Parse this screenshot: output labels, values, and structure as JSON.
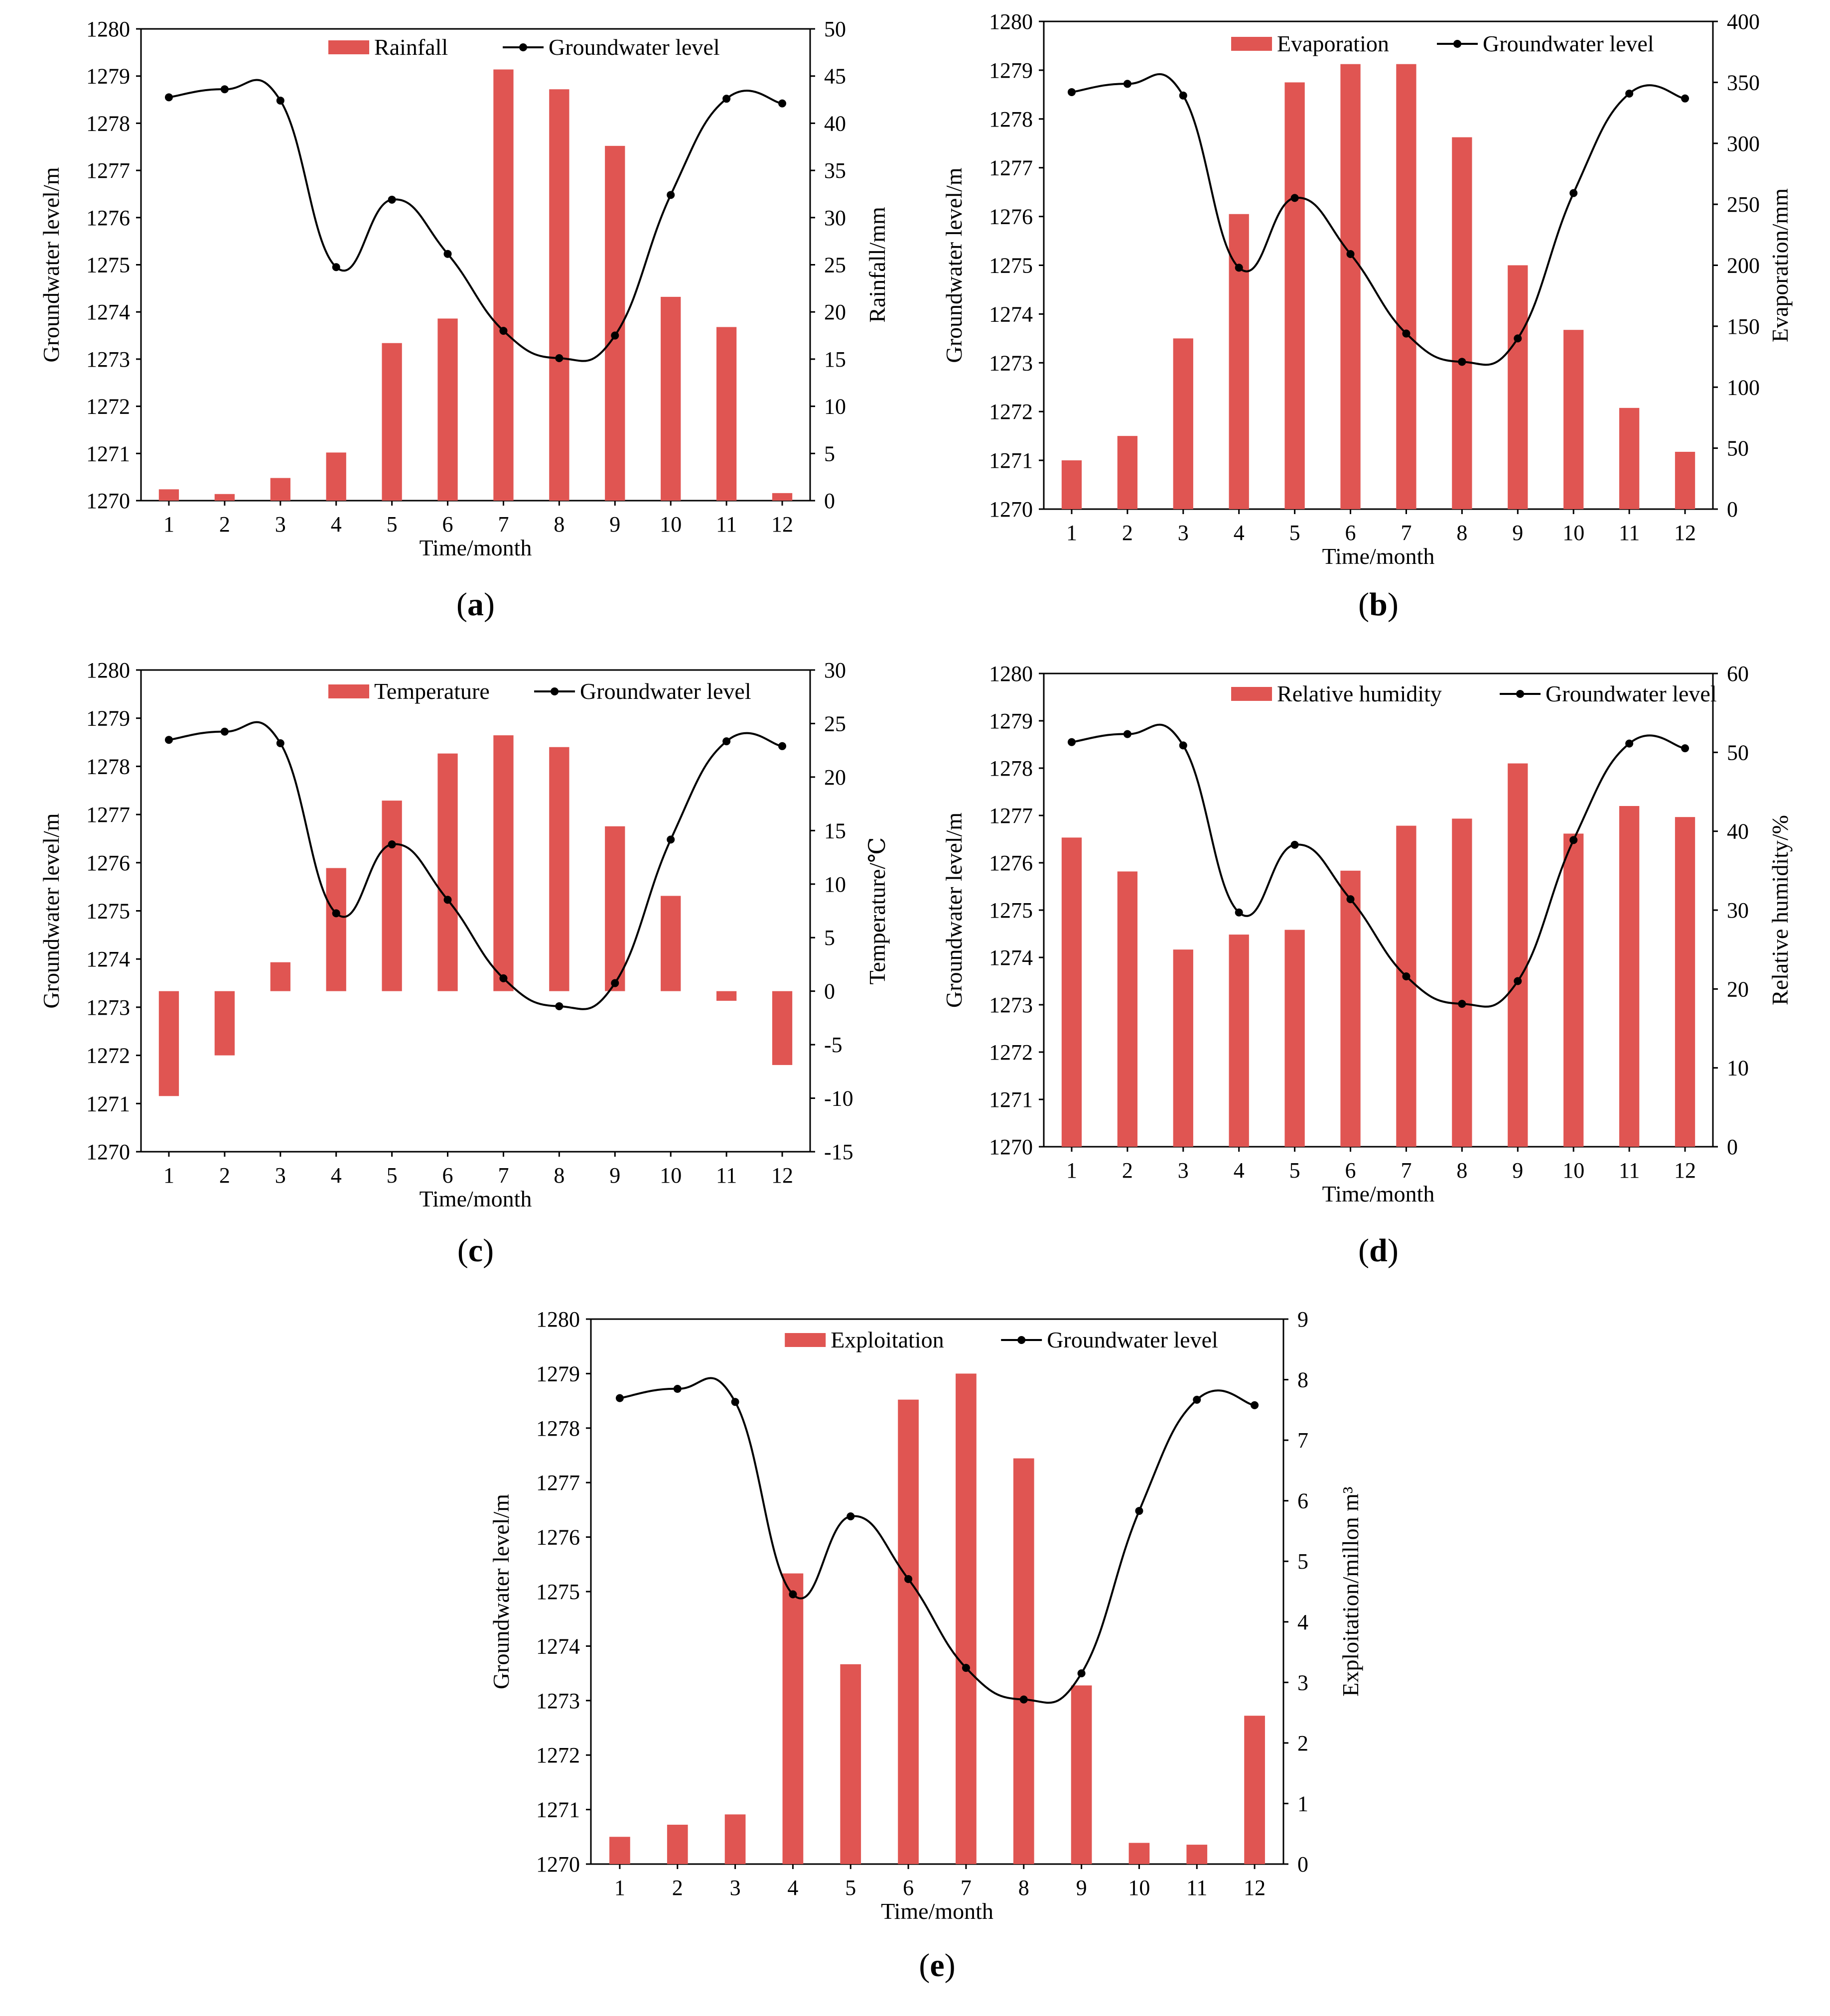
{
  "figure": {
    "colors": {
      "bar": "#E05552",
      "line": "#000000"
    }
  },
  "chart_data": [
    {
      "type": "bar",
      "panel_label": "a",
      "categories": [
        "1",
        "2",
        "3",
        "4",
        "5",
        "6",
        "7",
        "8",
        "9",
        "10",
        "11",
        "12"
      ],
      "xlabel": "Time/month",
      "ylabel_left": "Groundwater level/m",
      "ylabel_right": "Rainfall/mm",
      "ylim_left": [
        1270,
        1280
      ],
      "ylim_right": [
        0,
        50
      ],
      "yticks_left": [
        1270,
        1271,
        1272,
        1273,
        1274,
        1275,
        1276,
        1277,
        1278,
        1279,
        1280
      ],
      "yticks_right": [
        0,
        5,
        10,
        15,
        20,
        25,
        30,
        35,
        40,
        45,
        50
      ],
      "legend": [
        "Rainfall",
        "Groundwater level"
      ],
      "legend_position": "top",
      "series": [
        {
          "name": "Rainfall",
          "type": "bar",
          "axis": "right",
          "values": [
            1.2,
            0.7,
            2.4,
            5.1,
            16.7,
            19.3,
            45.7,
            43.6,
            37.6,
            21.6,
            18.4,
            0.8
          ]
        },
        {
          "name": "Groundwater level",
          "type": "line",
          "axis": "left",
          "values": [
            1278.55,
            1278.72,
            1278.48,
            1274.95,
            1276.38,
            1275.23,
            1273.6,
            1273.02,
            1273.5,
            1276.48,
            1278.52,
            1278.42
          ]
        }
      ]
    },
    {
      "type": "bar",
      "panel_label": "b",
      "categories": [
        "1",
        "2",
        "3",
        "4",
        "5",
        "6",
        "7",
        "8",
        "9",
        "10",
        "11",
        "12"
      ],
      "xlabel": "Time/month",
      "ylabel_left": "Groundwater level/m",
      "ylabel_right": "Evaporation/mm",
      "ylim_left": [
        1270,
        1280
      ],
      "ylim_right": [
        0,
        400
      ],
      "yticks_left": [
        1270,
        1271,
        1272,
        1273,
        1274,
        1275,
        1276,
        1277,
        1278,
        1279,
        1280
      ],
      "yticks_right": [
        0,
        50,
        100,
        150,
        200,
        250,
        300,
        350,
        400
      ],
      "legend": [
        "Evaporation",
        "Groundwater level"
      ],
      "legend_position": "top",
      "series": [
        {
          "name": "Evaporation",
          "type": "bar",
          "axis": "right",
          "values": [
            40,
            60,
            140,
            242,
            350,
            365,
            365,
            305,
            200,
            147,
            83,
            47
          ]
        },
        {
          "name": "Groundwater level",
          "type": "line",
          "axis": "left",
          "values": [
            1278.55,
            1278.72,
            1278.48,
            1274.95,
            1276.38,
            1275.23,
            1273.6,
            1273.02,
            1273.5,
            1276.48,
            1278.52,
            1278.42
          ]
        }
      ]
    },
    {
      "type": "bar",
      "panel_label": "c",
      "categories": [
        "1",
        "2",
        "3",
        "4",
        "5",
        "6",
        "7",
        "8",
        "9",
        "10",
        "11",
        "12"
      ],
      "xlabel": "Time/month",
      "ylabel_left": "Groundwater level/m",
      "ylabel_right": "Temperature/℃",
      "ylim_left": [
        1270,
        1280
      ],
      "ylim_right": [
        -15,
        30
      ],
      "yticks_left": [
        1270,
        1271,
        1272,
        1273,
        1274,
        1275,
        1276,
        1277,
        1278,
        1279,
        1280
      ],
      "yticks_right": [
        -15,
        -10,
        -5,
        0,
        5,
        10,
        15,
        20,
        25,
        30
      ],
      "legend": [
        "Temperature",
        "Groundwater level"
      ],
      "legend_position": "top",
      "series": [
        {
          "name": "Temperature",
          "type": "bar",
          "axis": "right",
          "values": [
            -9.8,
            -6.0,
            2.7,
            11.5,
            17.8,
            22.2,
            23.9,
            22.8,
            15.4,
            8.9,
            -0.9,
            -6.9
          ]
        },
        {
          "name": "Groundwater level",
          "type": "line",
          "axis": "left",
          "values": [
            1278.55,
            1278.72,
            1278.48,
            1274.95,
            1276.38,
            1275.23,
            1273.6,
            1273.02,
            1273.5,
            1276.48,
            1278.52,
            1278.42
          ]
        }
      ]
    },
    {
      "type": "bar",
      "panel_label": "d",
      "categories": [
        "1",
        "2",
        "3",
        "4",
        "5",
        "6",
        "7",
        "8",
        "9",
        "10",
        "11",
        "12"
      ],
      "xlabel": "Time/month",
      "ylabel_left": "Groundwater level/m",
      "ylabel_right": "Relative humidity/%",
      "ylim_left": [
        1270,
        1280
      ],
      "ylim_right": [
        0,
        60
      ],
      "yticks_left": [
        1270,
        1271,
        1272,
        1273,
        1274,
        1275,
        1276,
        1277,
        1278,
        1279,
        1280
      ],
      "yticks_right": [
        0,
        10,
        20,
        30,
        40,
        50,
        60
      ],
      "legend": [
        "Relative humidity",
        "Groundwater level"
      ],
      "legend_position": "top",
      "series": [
        {
          "name": "Relative humidity",
          "type": "bar",
          "axis": "right",
          "values": [
            39.2,
            34.9,
            25.0,
            26.9,
            27.5,
            35.0,
            40.7,
            41.6,
            48.6,
            39.7,
            43.2,
            41.8
          ]
        },
        {
          "name": "Groundwater level",
          "type": "line",
          "axis": "left",
          "values": [
            1278.55,
            1278.72,
            1278.48,
            1274.95,
            1276.38,
            1275.23,
            1273.6,
            1273.02,
            1273.5,
            1276.48,
            1278.52,
            1278.42
          ]
        }
      ]
    },
    {
      "type": "bar",
      "panel_label": "e",
      "categories": [
        "1",
        "2",
        "3",
        "4",
        "5",
        "6",
        "7",
        "8",
        "9",
        "10",
        "11",
        "12"
      ],
      "xlabel": "Time/month",
      "ylabel_left": "Groundwater level/m",
      "ylabel_right": "Exploitation/millon m³",
      "ylim_left": [
        1270,
        1280
      ],
      "ylim_right": [
        0,
        9
      ],
      "yticks_left": [
        1270,
        1271,
        1272,
        1273,
        1274,
        1275,
        1276,
        1277,
        1278,
        1279,
        1280
      ],
      "yticks_right": [
        0,
        1,
        2,
        3,
        4,
        5,
        6,
        7,
        8,
        9
      ],
      "legend": [
        "Exploitation",
        "Groundwater level"
      ],
      "legend_position": "top",
      "series": [
        {
          "name": "Exploitation",
          "type": "bar",
          "axis": "right",
          "values": [
            0.45,
            0.65,
            0.82,
            4.8,
            3.3,
            7.67,
            8.1,
            6.7,
            2.95,
            0.35,
            0.32,
            2.45
          ]
        },
        {
          "name": "Groundwater level",
          "type": "line",
          "axis": "left",
          "values": [
            1278.55,
            1278.72,
            1278.48,
            1274.95,
            1276.38,
            1275.23,
            1273.6,
            1273.02,
            1273.5,
            1276.48,
            1278.52,
            1278.42
          ]
        }
      ]
    }
  ]
}
